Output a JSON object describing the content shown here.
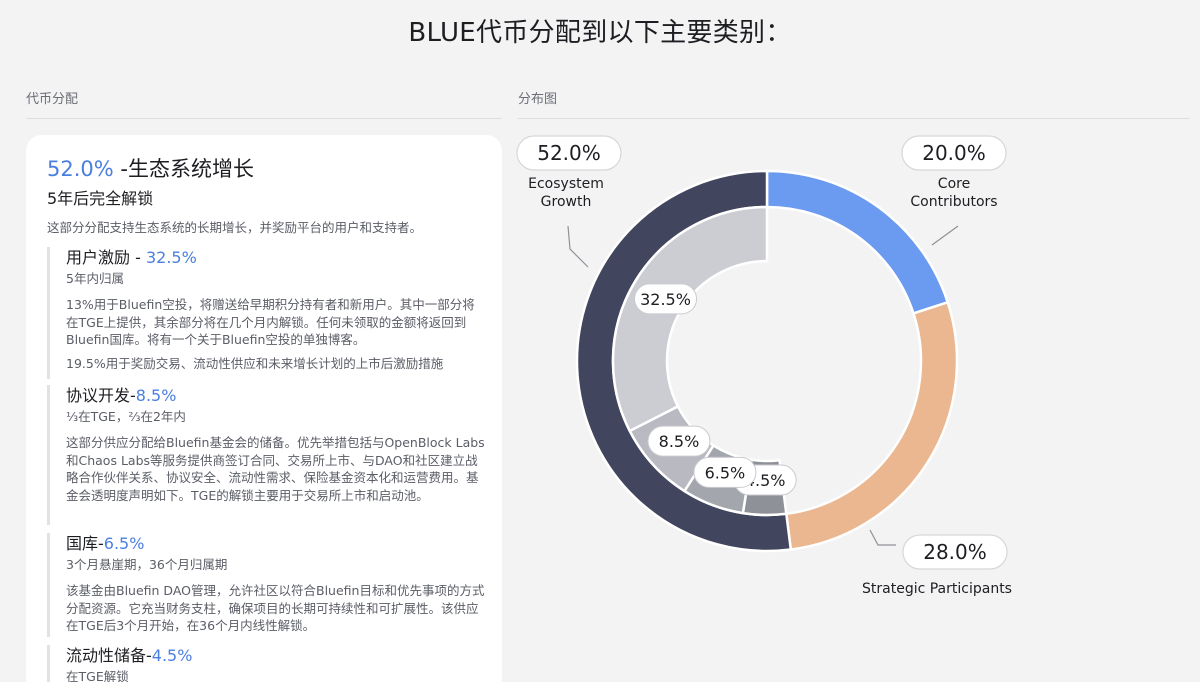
{
  "page_title": "BLUE代币分配到以下主要类别：",
  "left_section_label": "代币分配",
  "right_section_label": "分布图",
  "card": {
    "headline_pct": "52.0%",
    "headline_text": " -生态系统增长",
    "unlock": "5年后完全解锁",
    "intro": "这部分分配支持生态系统的长期增长，并奖励平台的用户和支持者。",
    "items": [
      {
        "title": "用户激励 - ",
        "pct": "32.5%",
        "vesting": "5年内归属",
        "body": [
          "13%用于Bluefin空投，将赠送给早期积分持有者和新用户。其中一部分将在TGE上提供，其余部分将在几个月内解锁。任何未领取的金额将返回到Bluefin国库。将有一个关于Bluefin空投的单独博客。",
          "19.5%用于奖励交易、流动性供应和未来增长计划的上市后激励措施"
        ]
      },
      {
        "title": "协议开发-",
        "pct": "8.5%",
        "vesting": "⅓在TGE，⅔在2年内",
        "body": [
          "这部分供应分配给Bluefin基金会的储备。优先举措包括与OpenBlock Labs和Chaos Labs等服务提供商签订合同、交易所上市、与DAO和社区建立战略合作伙伴关系、协议安全、流动性需求、保险基金资本化和运营费用。基金会透明度声明如下。TGE的解锁主要用于交易所上市和启动池。"
        ]
      },
      {
        "title": "国库-",
        "pct": "6.5%",
        "vesting": "3个月悬崖期，36个月归属期",
        "body": [
          "该基金由Bluefin DAO管理，允许社区以符合Bluefin目标和优先事项的方式分配资源。它充当财务支柱，确保项目的长期可持续性和可扩展性。该供应在TGE后3个月开始，在36个月内线性解锁。"
        ]
      },
      {
        "title": "流动性储备-",
        "pct": "4.5%",
        "vesting": "在TGE解锁",
        "body": []
      }
    ]
  },
  "chart_data": {
    "type": "pie",
    "variant": "nested-donut",
    "outer": [
      {
        "name": "Core Contributors",
        "label_lines": [
          "Core",
          "Contributors"
        ],
        "value": 20.0,
        "badge": "20.0%",
        "color": "#6b9bf0"
      },
      {
        "name": "Strategic Participants",
        "label_lines": [
          "Strategic Participants"
        ],
        "value": 28.0,
        "badge": "28.0%",
        "color": "#ebb790"
      },
      {
        "name": "Ecosystem Growth",
        "label_lines": [
          "Ecosystem",
          "Growth"
        ],
        "value": 52.0,
        "badge": "52.0%",
        "color": "#41455d"
      }
    ],
    "inner": [
      {
        "value": 32.5,
        "badge": "32.5%",
        "color": "#ccccd3"
      },
      {
        "value": 8.5,
        "badge": "8.5%",
        "color": "#b8b9c1"
      },
      {
        "value": 6.5,
        "badge": "6.5%",
        "color": "#a4a6ae"
      },
      {
        "value": 4.5,
        "badge": "4.5%",
        "color": "#8f9199"
      }
    ]
  }
}
